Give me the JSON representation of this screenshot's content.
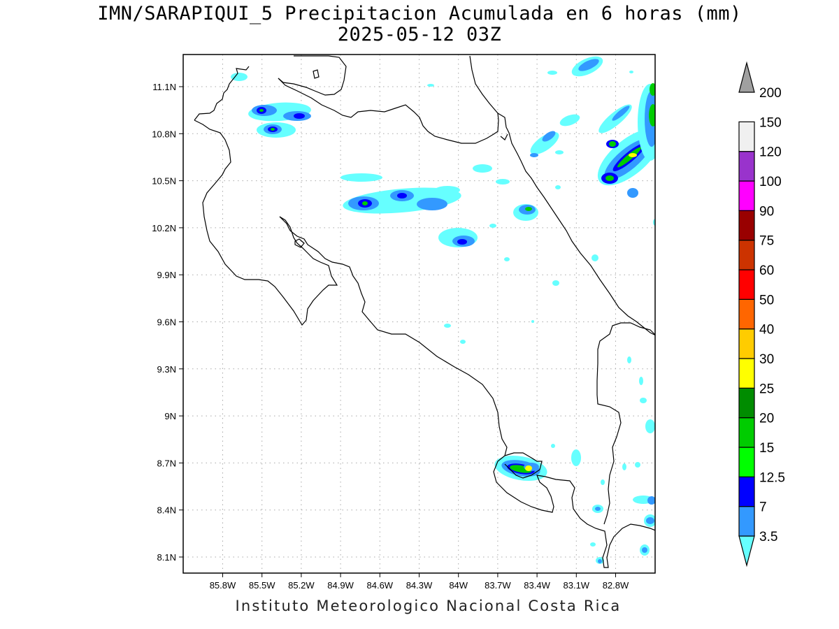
{
  "title": {
    "line1": "IMN/SARAPIQUI_5 Precipitacion Acumulada en 6 horas (mm)",
    "line2": "2025-05-12 03Z"
  },
  "footer": {
    "credit": "Instituto Meteorologico Nacional Costa Rica"
  },
  "map": {
    "lon_range": [
      -86.0,
      -83.0
    ],
    "lat_range": [
      8.0,
      11.3
    ],
    "lon_ticks": [
      {
        "value": -85.8,
        "label": "85.8W"
      },
      {
        "value": -85.5,
        "label": "85.5W"
      },
      {
        "value": -85.2,
        "label": "85.2W"
      },
      {
        "value": -84.9,
        "label": "84.9W"
      },
      {
        "value": -84.6,
        "label": "84.6W"
      },
      {
        "value": -84.3,
        "label": "84.3W"
      },
      {
        "value": -84.0,
        "label": "84W"
      },
      {
        "value": -83.7,
        "label": "83.7W"
      },
      {
        "value": -83.4,
        "label": "83.4W"
      },
      {
        "value": -83.1,
        "label": "83.1W"
      },
      {
        "value": -82.8,
        "label": "82.8W"
      }
    ],
    "lat_ticks": [
      {
        "value": 11.1,
        "label": "11.1N"
      },
      {
        "value": 10.8,
        "label": "10.8N"
      },
      {
        "value": 10.5,
        "label": "10.5N"
      },
      {
        "value": 10.2,
        "label": "10.2N"
      },
      {
        "value": 9.9,
        "label": "9.9N"
      },
      {
        "value": 9.6,
        "label": "9.6N"
      },
      {
        "value": 9.3,
        "label": "9.3N"
      },
      {
        "value": 9.0,
        "label": "9N"
      },
      {
        "value": 8.7,
        "label": "8.7N"
      },
      {
        "value": 8.4,
        "label": "8.4N"
      },
      {
        "value": 8.1,
        "label": "8.1N"
      }
    ],
    "grid": true
  },
  "legend": {
    "bins": [
      {
        "label": "3.5",
        "color": "#66ffff"
      },
      {
        "label": "7",
        "color": "#3399ff"
      },
      {
        "label": "12.5",
        "color": "#0000ff"
      },
      {
        "label": "15",
        "color": "#00ff00"
      },
      {
        "label": "20",
        "color": "#00cc00"
      },
      {
        "label": "25",
        "color": "#008c00"
      },
      {
        "label": "30",
        "color": "#ffff00"
      },
      {
        "label": "40",
        "color": "#ffcc00"
      },
      {
        "label": "50",
        "color": "#ff6600"
      },
      {
        "label": "60",
        "color": "#ff0000"
      },
      {
        "label": "75",
        "color": "#cc3300"
      },
      {
        "label": "90",
        "color": "#990000"
      },
      {
        "label": "100",
        "color": "#ff00ff"
      },
      {
        "label": "120",
        "color": "#9933cc"
      },
      {
        "label": "150",
        "color": "#f0f0f0"
      },
      {
        "label": "200",
        "color": "#a0a0a0"
      }
    ]
  }
}
